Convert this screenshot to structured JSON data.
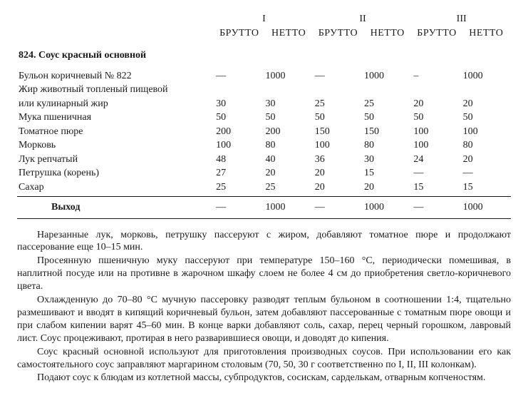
{
  "columns": {
    "romans": [
      "I",
      "II",
      "III"
    ],
    "sub": [
      "БРУТТО",
      "НЕТТО",
      "БРУТТО",
      "НЕТТО",
      "БРУТТО",
      "НЕТТО"
    ]
  },
  "title": "824.  Соус красный основной",
  "ingredients": [
    {
      "name": "Бульон коричневый № 822",
      "v": [
        "—",
        "1000",
        "—",
        "1000",
        "–",
        "1000"
      ]
    },
    {
      "name": "Жир животный топленый пищевой",
      "v": [
        "",
        "",
        "",
        "",
        "",
        ""
      ]
    },
    {
      "name": "или кулинарный жир",
      "v": [
        "30",
        "30",
        "25",
        "25",
        "20",
        "20"
      ]
    },
    {
      "name": "Мука пшеничная",
      "v": [
        "50",
        "50",
        "50",
        "50",
        "50",
        "50"
      ]
    },
    {
      "name": "Томатное пюре",
      "v": [
        "200",
        "200",
        "150",
        "150",
        "100",
        "100"
      ]
    },
    {
      "name": "Морковь",
      "v": [
        "100",
        "80",
        "100",
        "80",
        "100",
        "80"
      ]
    },
    {
      "name": "Лук репчатый",
      "v": [
        "48",
        "40",
        "36",
        "30",
        "24",
        "20"
      ]
    },
    {
      "name": "Петрушка (корень)",
      "v": [
        "27",
        "20",
        "20",
        "15",
        "—",
        "—"
      ]
    },
    {
      "name": "Сахар",
      "v": [
        "25",
        "25",
        "20",
        "20",
        "15",
        "15"
      ]
    }
  ],
  "yield": {
    "label": "Выход",
    "v": [
      "—",
      "1000",
      "—",
      "1000",
      "—",
      "1000"
    ]
  },
  "paragraphs": [
    "Нарезанные лук, морковь, петрушку пассеруют с жиром, добавляют томатное пюре и продолжают пассерование еще 10–15 мин.",
    "Просеянную пшеничную муку пассеруют при температуре 150–160 °С, периодически помешивая, в наплитной посуде или на противне в жарочном шкафу слоем не более 4 см до приобретения светло-коричневого цвета.",
    "Охлажденную до 70–80 °С мучную пассеровку разводят теплым бульоном в соотношении 1:4, тщательно размешивают и вводят в кипящий коричневый бульон, затем добавляют пассерованные с томатным пюре овощи и при слабом кипении варят 45–60 мин. В конце варки добавляют соль, сахар, перец черный горошком, лавровый лист. Соус процеживают, протирая в него разварившиеся овощи, и доводят до кипения.",
    "Соус красный основной используют для приготовления производных соусов. При использовании его как самостоятельного соус заправляют маргарином столовым (70, 50, 30 г соответственно по I, II, III колонкам).",
    "Подают соус к блюдам из котлетной массы, субпродуктов, сосискам, сарделькам, отварным копченостям."
  ]
}
